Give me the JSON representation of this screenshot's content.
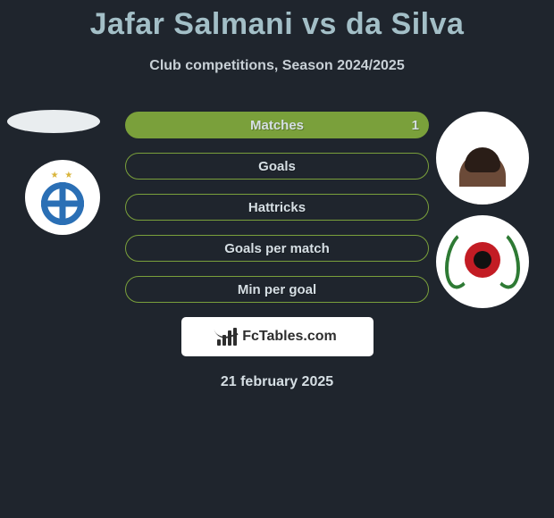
{
  "title": "Jafar Salmani vs da Silva",
  "subtitle": "Club competitions, Season 2024/2025",
  "date_line": "21 february 2025",
  "colors": {
    "background": "#1f252d",
    "title_color": "#a3bfc7",
    "text_color": "#d6dfe4",
    "bar_border": "#7aa03b",
    "bar_fill": "#7aa03b",
    "badge_bg": "#ffffff"
  },
  "stats": {
    "matches": {
      "label": "Matches",
      "filled": true,
      "right_value": "1"
    },
    "goals": {
      "label": "Goals",
      "filled": false,
      "right_value": ""
    },
    "hattricks": {
      "label": "Hattricks",
      "filled": false,
      "right_value": ""
    },
    "goals_per": {
      "label": "Goals per match",
      "filled": false,
      "right_value": ""
    },
    "min_per": {
      "label": "Min per goal",
      "filled": false,
      "right_value": ""
    }
  },
  "badge": {
    "text": "FcTables.com"
  },
  "left": {
    "player": "Jafar Salmani",
    "club": "Esteghlal"
  },
  "right": {
    "player": "da Silva",
    "club": "Al-Rayyan"
  }
}
